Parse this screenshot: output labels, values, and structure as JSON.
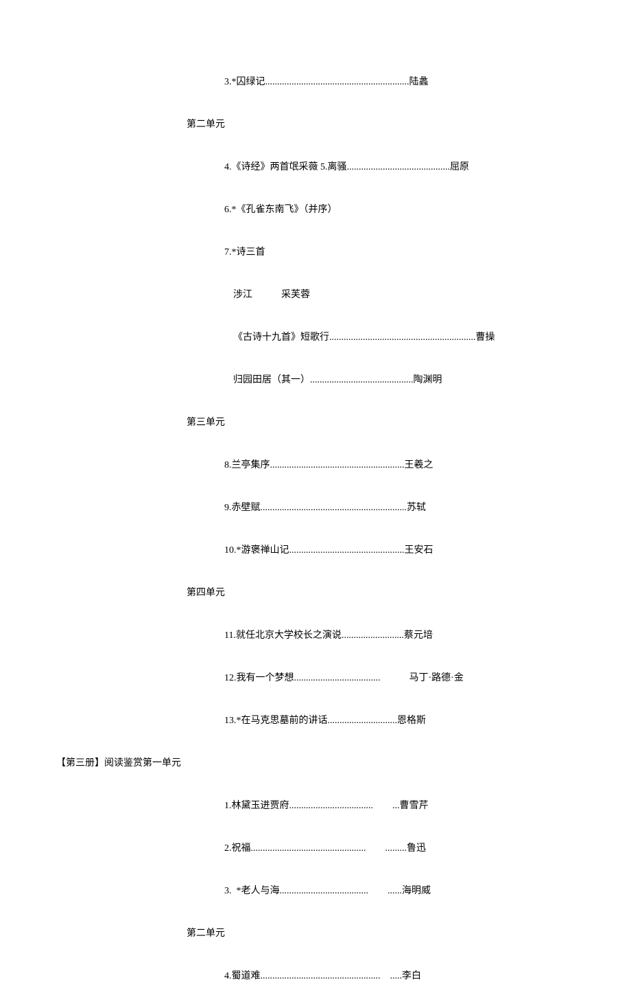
{
  "lines": [
    {
      "indent": "indent-1",
      "text": "3.*囚绿记............................................................陆蠡"
    },
    {
      "indent": "indent-0",
      "text": "第二单元"
    },
    {
      "indent": "indent-1",
      "text": "4.《诗经》两首氓采薇 5.离骚...........................................屈原"
    },
    {
      "indent": "indent-1",
      "text": "6.*《孔雀东南飞》（并序）"
    },
    {
      "indent": "indent-1",
      "text": "7.*诗三首"
    },
    {
      "indent": "indent-sub",
      "text": "涉江   采芙蓉"
    },
    {
      "indent": "indent-sub",
      "text": "《古诗十九首》短歌行.............................................................曹操"
    },
    {
      "indent": "indent-sub",
      "text": "归园田居（其一）...........................................陶渊明"
    },
    {
      "indent": "indent-0",
      "text": "第三单元"
    },
    {
      "indent": "indent-1",
      "text": "8.兰亭集序........................................................王羲之"
    },
    {
      "indent": "indent-1",
      "text": "9.赤壁赋.............................................................苏轼"
    },
    {
      "indent": "indent-1",
      "text": "10.*游褒禅山记................................................王安石"
    },
    {
      "indent": "indent-0",
      "text": "第四单元"
    },
    {
      "indent": "indent-1",
      "text": "11.就任北京大学校长之演说..........................蔡元培"
    },
    {
      "indent": "indent-1",
      "text": "12.我有一个梦想....................................   马丁·路德·金"
    },
    {
      "indent": "indent-1",
      "text": "13.*在马克思墓前的讲话.............................恩格斯"
    },
    {
      "indent": "indent-root",
      "text": "【第三册】阅读鉴赏第一单元"
    },
    {
      "indent": "indent-1",
      "text": "1.林黛玉进贾府...................................  ...曹雪芹"
    },
    {
      "indent": "indent-1",
      "text": "2.祝福................................................  .........鲁迅"
    },
    {
      "indent": "indent-1",
      "text": "3. *老人与海.....................................  ......海明威"
    },
    {
      "indent": "indent-0",
      "text": "第二单元"
    },
    {
      "indent": "indent-1",
      "text": "4.蜀道难.................................................. .....李白"
    }
  ]
}
